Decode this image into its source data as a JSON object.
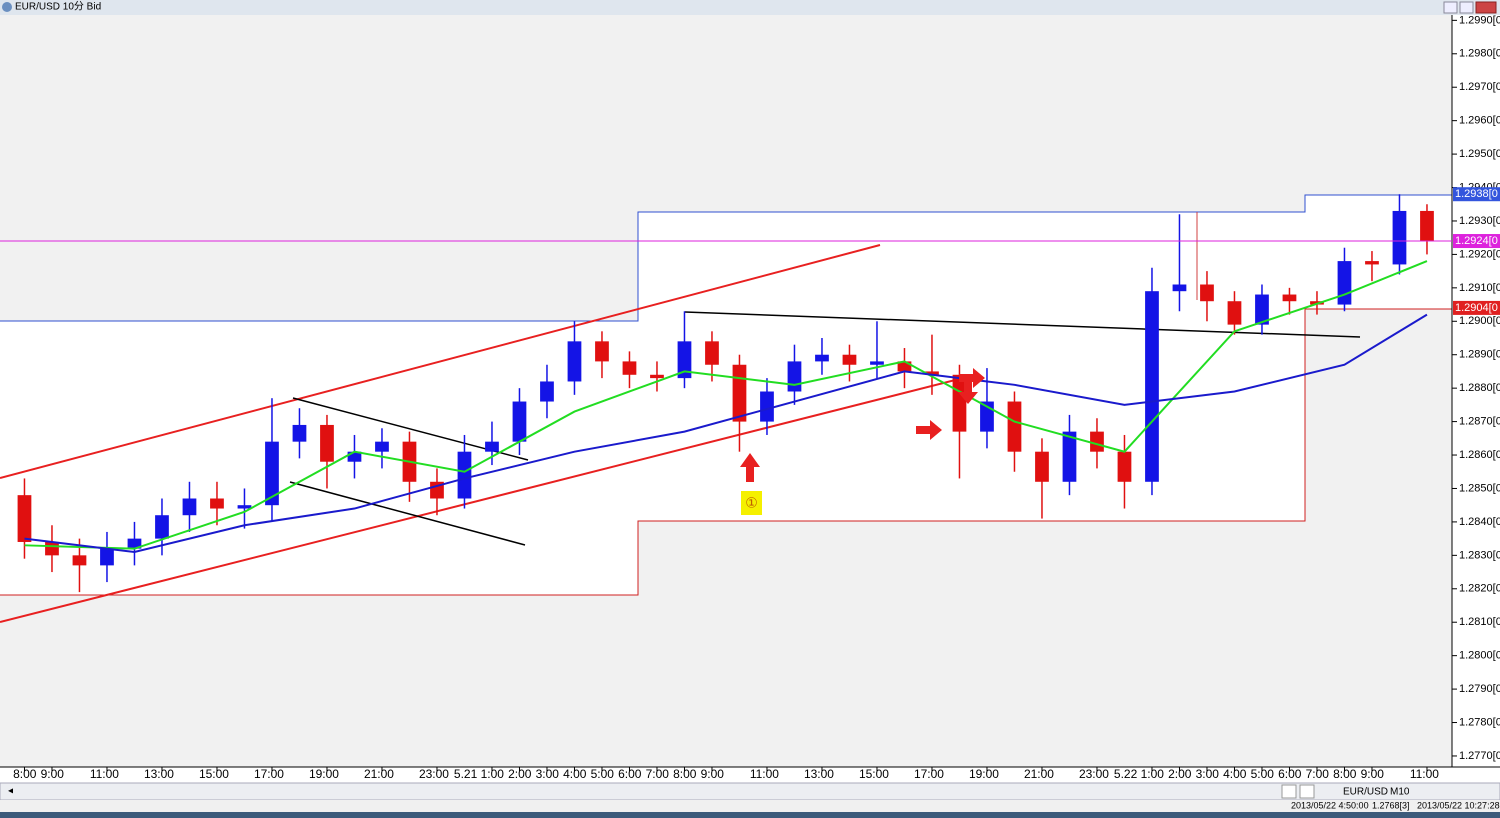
{
  "window": {
    "title": "EUR/USD 10分 Bid",
    "symbol": "EUR/USD",
    "timeframe": "M10",
    "status": [
      "2013/05/22 4:50:00",
      "1.2768[3]",
      "2013/05/22 10:27:28"
    ]
  },
  "chart_data": {
    "type": "candlestick",
    "up_color": "#1414e6",
    "down_color": "#e01010",
    "x": [
      8,
      9,
      10,
      11,
      12,
      13,
      14,
      15,
      16,
      17,
      18,
      19,
      20,
      21,
      22,
      23,
      24,
      25,
      26,
      27,
      28,
      29,
      30,
      31,
      32,
      33,
      34,
      35,
      36,
      37,
      38,
      39,
      40,
      41,
      42,
      43,
      44,
      45,
      46,
      47,
      48,
      49,
      50,
      51,
      52,
      53,
      54,
      55,
      56,
      57,
      58,
      59
    ],
    "open": [
      1.2848,
      1.2834,
      1.283,
      1.2827,
      1.2832,
      1.2835,
      1.2842,
      1.2847,
      1.2844,
      1.2845,
      1.2864,
      1.2869,
      1.2858,
      1.2861,
      1.2864,
      1.2852,
      1.2847,
      1.2861,
      1.2864,
      1.2876,
      1.2882,
      1.2894,
      1.2888,
      1.2884,
      1.2883,
      1.2894,
      1.2887,
      1.287,
      1.2879,
      1.2888,
      1.289,
      1.2887,
      1.2888,
      1.2885,
      1.2884,
      1.2867,
      1.2876,
      1.2861,
      1.2852,
      1.2867,
      1.2861,
      1.2852,
      1.2909,
      1.2911,
      1.2906,
      1.2899,
      1.2908,
      1.2906,
      1.2905,
      1.2918,
      1.2917,
      1.2933
    ],
    "high": [
      1.2853,
      1.2839,
      1.2835,
      1.2837,
      1.284,
      1.2847,
      1.2852,
      1.2852,
      1.285,
      1.2877,
      1.2874,
      1.2872,
      1.2866,
      1.2868,
      1.2867,
      1.2856,
      1.2866,
      1.287,
      1.288,
      1.2887,
      1.29,
      1.2897,
      1.2891,
      1.2888,
      1.2903,
      1.2897,
      1.289,
      1.2883,
      1.2893,
      1.2895,
      1.2893,
      1.29,
      1.2892,
      1.2896,
      1.2887,
      1.2886,
      1.2879,
      1.2865,
      1.2872,
      1.2871,
      1.2866,
      1.2916,
      1.2932,
      1.2915,
      1.2909,
      1.2911,
      1.291,
      1.2909,
      1.2922,
      1.2921,
      1.2938,
      1.2935
    ],
    "low": [
      1.2829,
      1.2825,
      1.2819,
      1.2822,
      1.2827,
      1.283,
      1.2837,
      1.2839,
      1.2838,
      1.284,
      1.2859,
      1.285,
      1.2853,
      1.2856,
      1.2846,
      1.2842,
      1.2844,
      1.2857,
      1.286,
      1.2871,
      1.2878,
      1.2883,
      1.288,
      1.2879,
      1.288,
      1.2882,
      1.2861,
      1.2866,
      1.2875,
      1.2884,
      1.2882,
      1.2883,
      1.288,
      1.2878,
      1.2853,
      1.2862,
      1.2855,
      1.2841,
      1.2848,
      1.2856,
      1.2844,
      1.2848,
      1.2903,
      1.29,
      1.2896,
      1.2896,
      1.2902,
      1.2902,
      1.2903,
      1.2912,
      1.2914,
      1.292
    ],
    "close": [
      1.2834,
      1.283,
      1.2827,
      1.2832,
      1.2835,
      1.2842,
      1.2847,
      1.2844,
      1.2845,
      1.2864,
      1.2869,
      1.2858,
      1.2861,
      1.2864,
      1.2852,
      1.2847,
      1.2861,
      1.2864,
      1.2876,
      1.2882,
      1.2894,
      1.2888,
      1.2884,
      1.2883,
      1.2894,
      1.2887,
      1.287,
      1.2879,
      1.2888,
      1.289,
      1.2887,
      1.2888,
      1.2885,
      1.2884,
      1.2867,
      1.2876,
      1.2861,
      1.2852,
      1.2867,
      1.2861,
      1.2852,
      1.2909,
      1.2911,
      1.2906,
      1.2899,
      1.2908,
      1.2906,
      1.2905,
      1.2918,
      1.2917,
      1.2933,
      1.2924
    ],
    "moving_averages": [
      {
        "color": "#22dd22",
        "x": [
          8,
          12,
          16,
          20,
          24,
          28,
          32,
          36,
          40,
          44,
          48,
          52,
          56,
          59
        ],
        "values": [
          1.2833,
          1.2832,
          1.2843,
          1.2861,
          1.2855,
          1.2873,
          1.2885,
          1.2881,
          1.2888,
          1.287,
          1.2861,
          1.2897,
          1.2908,
          1.2918
        ]
      },
      {
        "color": "#1a1acc",
        "x": [
          8,
          12,
          16,
          20,
          24,
          28,
          32,
          36,
          40,
          44,
          48,
          52,
          56,
          59
        ],
        "values": [
          1.2835,
          1.2831,
          1.2839,
          1.2844,
          1.2853,
          1.2861,
          1.2867,
          1.2876,
          1.2885,
          1.2881,
          1.2875,
          1.2879,
          1.2887,
          1.2902
        ]
      }
    ],
    "price_labels": [
      {
        "value": 1.2938,
        "label": "1.2938[0",
        "color": "#3355dd"
      },
      {
        "value": 1.2924,
        "label": "1.2924[0",
        "color": "#dd22dd"
      },
      {
        "value": 1.2904,
        "label": "1.2904[0",
        "color": "#e02020"
      }
    ],
    "annotation": "①",
    "xlim": [
      7.11,
      59.91
    ],
    "ylim": [
      1.2767,
      1.2991
    ],
    "xticks": [
      {
        "value": 8,
        "label": "8:00"
      },
      {
        "value": 9,
        "label": "9:00"
      },
      {
        "value": 11,
        "label": "11:00"
      },
      {
        "value": 13,
        "label": "13:00"
      },
      {
        "value": 15,
        "label": "15:00"
      },
      {
        "value": 17,
        "label": "17:00"
      },
      {
        "value": 19,
        "label": "19:00"
      },
      {
        "value": 21,
        "label": "21:00"
      },
      {
        "value": 23,
        "label": "23:00"
      },
      {
        "value": 25,
        "label": "5.21 1:00"
      },
      {
        "value": 26,
        "label": "2:00"
      },
      {
        "value": 27,
        "label": "3:00"
      },
      {
        "value": 28,
        "label": "4:00"
      },
      {
        "value": 29,
        "label": "5:00"
      },
      {
        "value": 30,
        "label": "6:00"
      },
      {
        "value": 31,
        "label": "7:00"
      },
      {
        "value": 32,
        "label": "8:00"
      },
      {
        "value": 33,
        "label": "9:00"
      },
      {
        "value": 35,
        "label": "11:00"
      },
      {
        "value": 37,
        "label": "13:00"
      },
      {
        "value": 39,
        "label": "15:00"
      },
      {
        "value": 41,
        "label": "17:00"
      },
      {
        "value": 43,
        "label": "19:00"
      },
      {
        "value": 45,
        "label": "21:00"
      },
      {
        "value": 47,
        "label": "23:00"
      },
      {
        "value": 49,
        "label": "5.22 1:00"
      },
      {
        "value": 50,
        "label": "2:00"
      },
      {
        "value": 51,
        "label": "3:00"
      },
      {
        "value": 52,
        "label": "4:00"
      },
      {
        "value": 53,
        "label": "5:00"
      },
      {
        "value": 54,
        "label": "6:00"
      },
      {
        "value": 55,
        "label": "7:00"
      },
      {
        "value": 56,
        "label": "8:00"
      },
      {
        "value": 57,
        "label": "9:00"
      },
      {
        "value": 59,
        "label": "11:00"
      }
    ],
    "yticks": [
      {
        "value": 1.299,
        "label": "1.2990[0"
      },
      {
        "value": 1.298,
        "label": "1.2980[0"
      },
      {
        "value": 1.297,
        "label": "1.2970[0"
      },
      {
        "value": 1.296,
        "label": "1.2960[0"
      },
      {
        "value": 1.295,
        "label": "1.2950[0"
      },
      {
        "value": 1.294,
        "label": "1.2940[0"
      },
      {
        "value": 1.293,
        "label": "1.2930[0"
      },
      {
        "value": 1.292,
        "label": "1.2920[0"
      },
      {
        "value": 1.291,
        "label": "1.2910[0"
      },
      {
        "value": 1.29,
        "label": "1.2900[0"
      },
      {
        "value": 1.289,
        "label": "1.2890[0"
      },
      {
        "value": 1.288,
        "label": "1.2880[0"
      },
      {
        "value": 1.287,
        "label": "1.2870[0"
      },
      {
        "value": 1.286,
        "label": "1.2860[0"
      },
      {
        "value": 1.285,
        "label": "1.2850[0"
      },
      {
        "value": 1.284,
        "label": "1.2840[0"
      },
      {
        "value": 1.283,
        "label": "1.2830[0"
      },
      {
        "value": 1.282,
        "label": "1.2820[0"
      },
      {
        "value": 1.281,
        "label": "1.2810[0"
      },
      {
        "value": 1.28,
        "label": "1.2800[0"
      },
      {
        "value": 1.279,
        "label": "1.2790[0"
      },
      {
        "value": 1.278,
        "label": "1.2780[0"
      },
      {
        "value": 1.277,
        "label": "1.2770[0"
      }
    ]
  }
}
